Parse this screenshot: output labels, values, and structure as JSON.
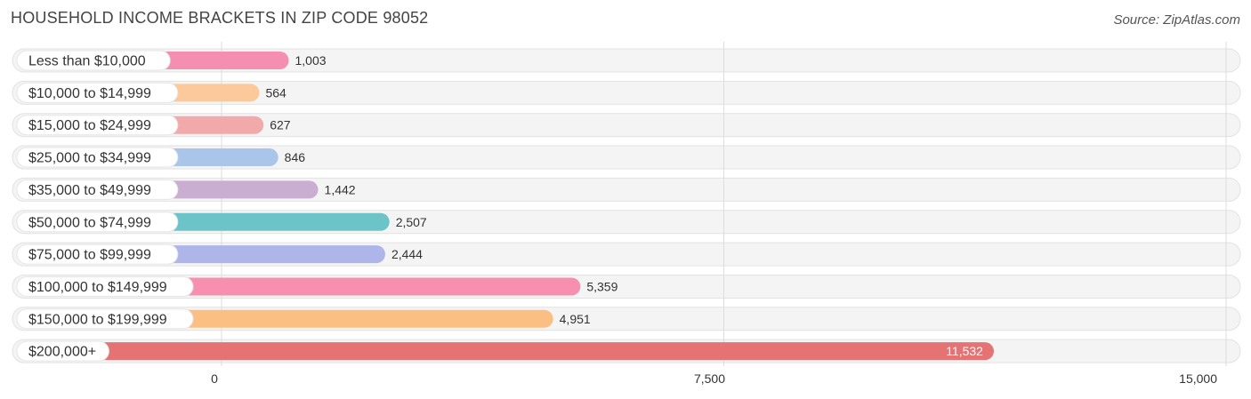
{
  "chart_data": {
    "type": "bar",
    "orientation": "horizontal",
    "title": "HOUSEHOLD INCOME BRACKETS IN ZIP CODE 98052",
    "source": "Source: ZipAtlas.com",
    "categories": [
      "Less than $10,000",
      "$10,000 to $14,999",
      "$15,000 to $24,999",
      "$25,000 to $34,999",
      "$35,000 to $49,999",
      "$50,000 to $74,999",
      "$75,000 to $99,999",
      "$100,000 to $149,999",
      "$150,000 to $199,999",
      "$200,000+"
    ],
    "values": [
      1003,
      564,
      627,
      846,
      1442,
      2507,
      2444,
      5359,
      4951,
      11532
    ],
    "value_labels": [
      "1,003",
      "564",
      "627",
      "846",
      "1,442",
      "2,507",
      "2,444",
      "5,359",
      "4,951",
      "11,532"
    ],
    "colors": [
      "#f48fb1",
      "#fbc99a",
      "#f1aaa9",
      "#a9c6ea",
      "#c9aed1",
      "#6dc4c8",
      "#aeb6e9",
      "#f78fb0",
      "#fbbf84",
      "#e57373"
    ],
    "xlim": [
      0,
      15000
    ],
    "xticks": [
      0,
      7500,
      15000
    ],
    "xtick_labels": [
      "0",
      "7,500",
      "15,000"
    ],
    "xlabel": "",
    "ylabel": ""
  }
}
